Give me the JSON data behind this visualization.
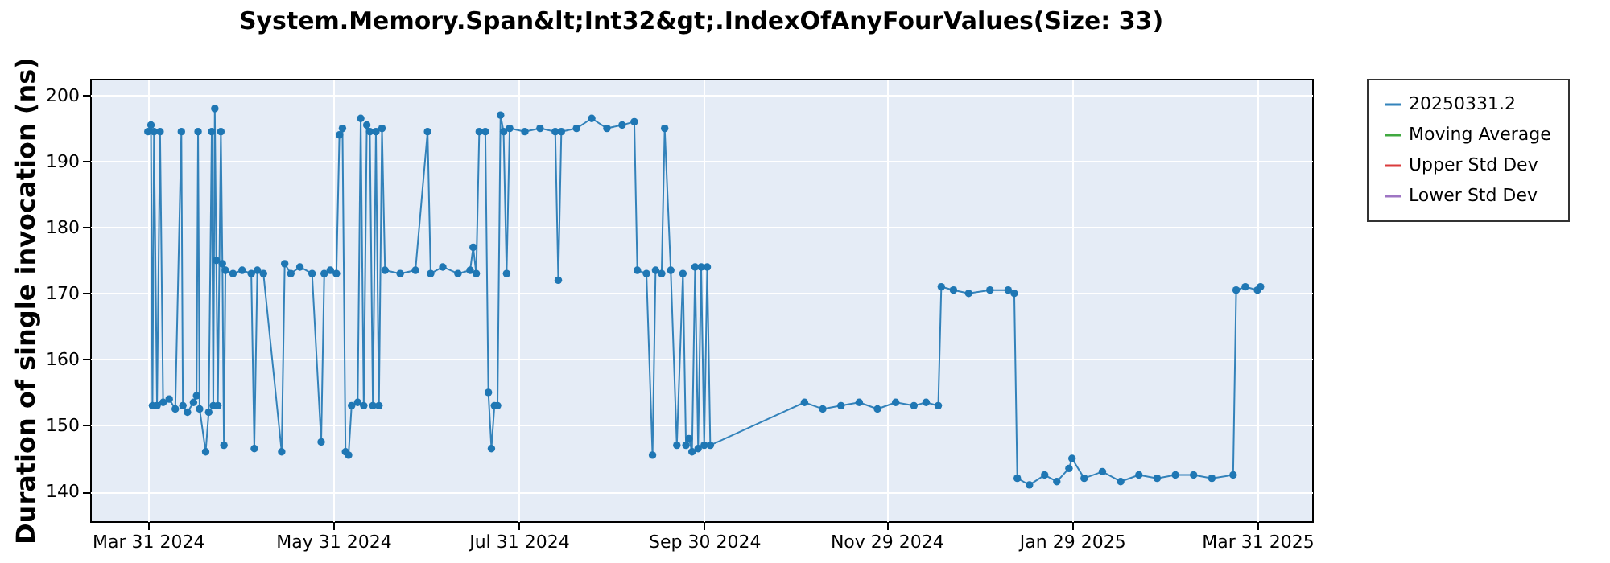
{
  "chart_data": {
    "type": "line",
    "title": "System.Memory.Span&lt;Int32&gt;.IndexOfAnyFourValues(Size: 33)",
    "ylabel": "Duration of single invocation (ns)",
    "x": [
      "2024-03-31",
      "2024-04-01",
      "2024-04-01T12:00",
      "2024-04-02",
      "2024-04-03",
      "2024-04-04",
      "2024-04-05",
      "2024-04-07",
      "2024-04-09",
      "2024-04-11",
      "2024-04-11T12:00",
      "2024-04-13",
      "2024-04-15",
      "2024-04-16",
      "2024-04-16T12:00",
      "2024-04-17",
      "2024-04-19",
      "2024-04-20",
      "2024-04-21",
      "2024-04-21T12:00",
      "2024-04-22",
      "2024-04-22T12:00",
      "2024-04-23",
      "2024-04-24",
      "2024-04-24T12:00",
      "2024-04-25",
      "2024-04-25T12:00",
      "2024-04-28",
      "2024-05-01",
      "2024-05-04",
      "2024-05-05",
      "2024-05-06",
      "2024-05-08",
      "2024-05-14",
      "2024-05-15",
      "2024-05-17",
      "2024-05-20",
      "2024-05-24",
      "2024-05-27",
      "2024-05-28",
      "2024-05-30",
      "2024-06-01",
      "2024-06-02",
      "2024-06-03",
      "2024-06-04",
      "2024-06-05",
      "2024-06-06",
      "2024-06-08",
      "2024-06-09",
      "2024-06-10",
      "2024-06-11",
      "2024-06-12",
      "2024-06-13",
      "2024-06-14",
      "2024-06-15",
      "2024-06-16",
      "2024-06-17",
      "2024-06-22",
      "2024-06-27",
      "2024-07-01",
      "2024-07-02",
      "2024-07-06",
      "2024-07-11",
      "2024-07-15",
      "2024-07-16",
      "2024-07-17",
      "2024-07-18",
      "2024-07-20",
      "2024-07-21",
      "2024-07-22",
      "2024-07-23",
      "2024-07-24",
      "2024-07-25",
      "2024-07-26",
      "2024-07-27",
      "2024-07-28",
      "2024-08-02",
      "2024-08-07",
      "2024-08-12",
      "2024-08-13",
      "2024-08-14",
      "2024-08-19",
      "2024-08-24",
      "2024-08-29",
      "2024-09-03",
      "2024-09-07",
      "2024-09-08",
      "2024-09-11",
      "2024-09-13",
      "2024-09-14",
      "2024-09-16",
      "2024-09-17",
      "2024-09-19",
      "2024-09-21",
      "2024-09-23",
      "2024-09-24",
      "2024-09-25",
      "2024-09-26",
      "2024-09-27",
      "2024-09-28",
      "2024-09-29",
      "2024-09-30",
      "2024-10-01",
      "2024-10-02",
      "2024-11-02",
      "2024-11-08",
      "2024-11-14",
      "2024-11-20",
      "2024-11-26",
      "2024-12-02",
      "2024-12-08",
      "2024-12-12",
      "2024-12-16",
      "2024-12-17",
      "2024-12-21",
      "2024-12-26",
      "2025-01-02",
      "2025-01-08",
      "2025-01-10",
      "2025-01-11",
      "2025-01-15",
      "2025-01-20",
      "2025-01-24",
      "2025-01-28",
      "2025-01-29",
      "2025-02-02",
      "2025-02-08",
      "2025-02-14",
      "2025-02-20",
      "2025-02-26",
      "2025-03-04",
      "2025-03-10",
      "2025-03-16",
      "2025-03-23",
      "2025-03-24",
      "2025-03-27",
      "2025-03-31",
      "2025-04-01"
    ],
    "series": [
      {
        "name": "20250331.2",
        "color": "#1f77b4",
        "values": [
          194.5,
          195.5,
          153,
          194.5,
          153,
          194.5,
          153.5,
          154,
          152.5,
          194.5,
          153,
          152,
          153.5,
          154.5,
          194.5,
          152.5,
          146,
          152,
          194.5,
          153,
          198,
          175,
          153,
          194.5,
          174.5,
          147,
          173.5,
          173,
          173.5,
          173,
          146.5,
          173.5,
          173,
          146,
          174.5,
          173,
          174,
          173,
          147.5,
          173,
          173.5,
          173,
          194,
          195,
          146,
          145.5,
          153,
          153.5,
          196.5,
          153,
          195.5,
          194.5,
          153,
          194.5,
          153,
          195,
          173.5,
          173,
          173.5,
          194.5,
          173,
          174,
          173,
          173.5,
          177,
          173,
          194.5,
          194.5,
          155,
          146.5,
          153,
          153,
          197,
          194.5,
          173,
          195,
          194.5,
          195,
          194.5,
          172,
          194.5,
          195,
          196.5,
          195,
          195.5,
          196,
          173.5,
          173,
          145.5,
          173.5,
          173,
          195,
          173.5,
          147,
          173,
          147,
          148,
          146,
          174,
          146.5,
          174,
          147,
          174,
          147,
          153.5,
          152.5,
          153,
          153.5,
          152.5,
          153.5,
          153,
          153.5,
          153,
          171,
          170.5,
          170,
          170.5,
          170.5,
          170,
          142,
          141,
          142.5,
          141.5,
          143.5,
          145,
          142,
          143,
          141.5,
          142.5,
          142,
          142.5,
          142.5,
          142,
          142.5,
          170.5,
          171,
          170.5,
          171
        ]
      },
      {
        "name": "Moving Average",
        "color": "#2ca02c",
        "values": [
          null,
          null,
          null,
          null,
          null,
          null,
          null,
          null,
          null,
          null,
          null,
          null,
          null,
          null,
          null,
          null,
          null,
          null,
          null,
          null,
          null,
          null,
          null,
          null,
          null,
          null,
          null,
          null,
          null,
          null,
          null,
          null,
          null,
          null,
          null,
          null,
          null,
          null,
          null,
          null,
          null,
          null,
          null,
          null,
          null,
          null,
          null,
          null,
          null,
          null,
          null,
          null,
          null,
          null,
          null,
          null,
          null,
          null,
          null,
          null,
          null,
          null,
          null,
          null,
          null,
          null,
          null,
          null,
          null,
          null,
          null,
          null,
          null,
          null,
          null,
          null,
          null,
          null,
          null,
          null,
          null,
          null,
          null,
          null,
          null,
          null,
          null,
          null,
          null,
          null,
          null,
          null,
          null,
          null,
          null,
          null,
          null,
          null,
          null,
          null,
          null,
          null,
          null,
          null,
          null,
          null,
          null,
          null,
          null,
          null,
          null,
          null,
          null,
          null,
          null,
          null,
          null,
          null,
          null,
          null,
          null,
          null,
          null,
          null,
          null,
          null,
          null,
          null,
          null,
          null,
          null,
          null,
          null,
          null,
          null,
          null,
          null,
          null
        ]
      },
      {
        "name": "Upper Std Dev",
        "color": "#d62728",
        "values": [
          null,
          null,
          null,
          null,
          null,
          null,
          null,
          null,
          null,
          null,
          null,
          null,
          null,
          null,
          null,
          null,
          null,
          null,
          null,
          null,
          null,
          null,
          null,
          null,
          null,
          null,
          null,
          null,
          null,
          null,
          null,
          null,
          null,
          null,
          null,
          null,
          null,
          null,
          null,
          null,
          null,
          null,
          null,
          null,
          null,
          null,
          null,
          null,
          null,
          null,
          null,
          null,
          null,
          null,
          null,
          null,
          null,
          null,
          null,
          null,
          null,
          null,
          null,
          null,
          null,
          null,
          null,
          null,
          null,
          null,
          null,
          null,
          null,
          null,
          null,
          null,
          null,
          null,
          null,
          null,
          null,
          null,
          null,
          null,
          null,
          null,
          null,
          null,
          null,
          null,
          null,
          null,
          null,
          null,
          null,
          null,
          null,
          null,
          null,
          null,
          null,
          null,
          null,
          null,
          null,
          null,
          null,
          null,
          null,
          null,
          null,
          null,
          null,
          null,
          null,
          null,
          null,
          null,
          null,
          null,
          null,
          null,
          null,
          null,
          null,
          null,
          null,
          null,
          null,
          null,
          null,
          null,
          null,
          null,
          null,
          null,
          null,
          null
        ]
      },
      {
        "name": "Lower Std Dev",
        "color": "#9467bd",
        "values": [
          null,
          null,
          null,
          null,
          null,
          null,
          null,
          null,
          null,
          null,
          null,
          null,
          null,
          null,
          null,
          null,
          null,
          null,
          null,
          null,
          null,
          null,
          null,
          null,
          null,
          null,
          null,
          null,
          null,
          null,
          null,
          null,
          null,
          null,
          null,
          null,
          null,
          null,
          null,
          null,
          null,
          null,
          null,
          null,
          null,
          null,
          null,
          null,
          null,
          null,
          null,
          null,
          null,
          null,
          null,
          null,
          null,
          null,
          null,
          null,
          null,
          null,
          null,
          null,
          null,
          null,
          null,
          null,
          null,
          null,
          null,
          null,
          null,
          null,
          null,
          null,
          null,
          null,
          null,
          null,
          null,
          null,
          null,
          null,
          null,
          null,
          null,
          null,
          null,
          null,
          null,
          null,
          null,
          null,
          null,
          null,
          null,
          null,
          null,
          null,
          null,
          null,
          null,
          null,
          null,
          null,
          null,
          null,
          null,
          null,
          null,
          null,
          null,
          null,
          null,
          null,
          null,
          null,
          null,
          null,
          null,
          null,
          null,
          null,
          null,
          null,
          null,
          null,
          null,
          null,
          null,
          null,
          null,
          null,
          null,
          null,
          null,
          null
        ]
      }
    ],
    "xlim": [
      "2024-03-12",
      "2025-04-18"
    ],
    "xticks": [
      {
        "value": "2024-03-31",
        "label": "Mar 31 2024"
      },
      {
        "value": "2024-05-31",
        "label": "May 31 2024"
      },
      {
        "value": "2024-07-31",
        "label": "Jul 31 2024"
      },
      {
        "value": "2024-09-30",
        "label": "Sep 30 2024"
      },
      {
        "value": "2024-11-29",
        "label": "Nov 29 2024"
      },
      {
        "value": "2025-01-29",
        "label": "Jan 29 2025"
      },
      {
        "value": "2025-03-31",
        "label": "Mar 31 2025"
      }
    ],
    "ylim": [
      135.5,
      202.5
    ],
    "yticks": [
      140,
      150,
      160,
      170,
      180,
      190,
      200
    ],
    "grid": true,
    "legend": "right",
    "marker": "circle"
  }
}
